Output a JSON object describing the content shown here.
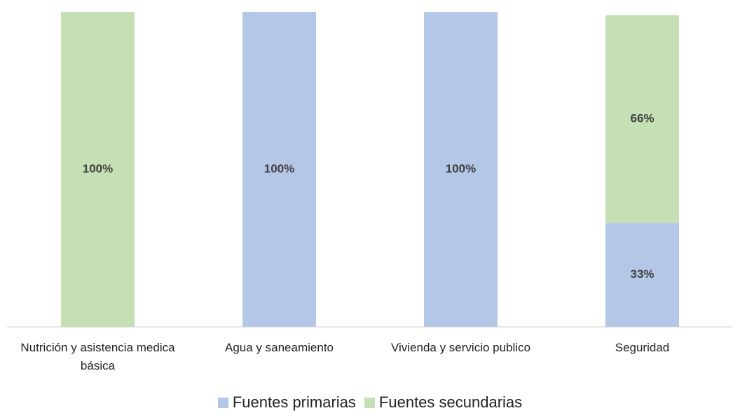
{
  "chart_data": {
    "type": "stacked-bar",
    "categories": [
      "Nutrición y asistencia medica básica",
      "Agua y saneamiento",
      "Vivienda y servicio publico",
      "Seguridad"
    ],
    "series": [
      {
        "name": "Fuentes primarias",
        "color": "#b4c7e7",
        "values": [
          0,
          100,
          100,
          33
        ],
        "value_labels": [
          null,
          "100%",
          "100%",
          "33%"
        ]
      },
      {
        "name": "Fuentes secundarias",
        "color": "#c5e0b4",
        "values": [
          100,
          0,
          0,
          66
        ],
        "value_labels": [
          "100%",
          null,
          null,
          "66%"
        ]
      }
    ],
    "ylim": [
      0,
      100
    ],
    "legend": "bottom"
  }
}
